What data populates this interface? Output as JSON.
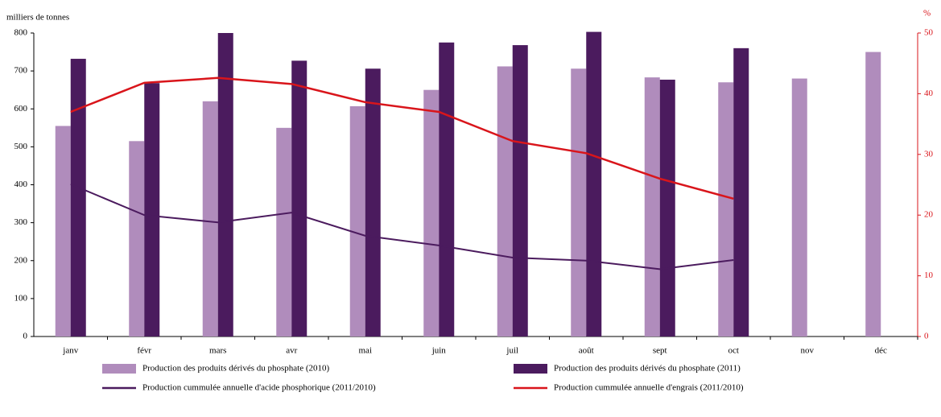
{
  "chart_data": {
    "type": "bar",
    "ylabel": "milliers de tonnes",
    "y2label": "%",
    "categories": [
      "janv",
      "févr",
      "mars",
      "avr",
      "mai",
      "juin",
      "juil",
      "août",
      "sept",
      "oct",
      "nov",
      "déc"
    ],
    "series": [
      {
        "name": "Production des produits dérivés du phosphate (2010)",
        "type": "bar",
        "color": "#b08cbc",
        "values": [
          555,
          515,
          620,
          550,
          607,
          650,
          712,
          706,
          683,
          670,
          680,
          750
        ]
      },
      {
        "name": "Production des produits dérivés du phosphate (2011)",
        "type": "bar",
        "color": "#4b1b5e",
        "values": [
          732,
          668,
          800,
          727,
          706,
          775,
          768,
          803,
          677,
          760,
          null,
          null
        ]
      },
      {
        "name": "Production cummulée annuelle d'acide phosphorique (2011/2010)",
        "type": "line",
        "axis": "y2",
        "color": "#4b1b5e",
        "values": [
          25.1,
          20.0,
          18.8,
          20.4,
          16.6,
          15.0,
          13.0,
          12.5,
          11.1,
          12.6,
          null,
          null
        ]
      },
      {
        "name": "Production cummulée annuelle d'engrais (2011/2010)",
        "type": "line",
        "axis": "y2",
        "color": "#d9151b",
        "values": [
          37.0,
          41.8,
          42.6,
          41.6,
          38.6,
          37.0,
          32.2,
          30.2,
          26.0,
          22.7,
          null,
          null
        ]
      }
    ],
    "ylim": [
      0,
      800
    ],
    "yticks": [
      0,
      100,
      200,
      300,
      400,
      500,
      600,
      700,
      800
    ],
    "y2lim": [
      0,
      50
    ],
    "y2ticks": [
      0,
      10,
      20,
      30,
      40,
      50
    ],
    "y2color": "#d9151b",
    "grid": false
  }
}
